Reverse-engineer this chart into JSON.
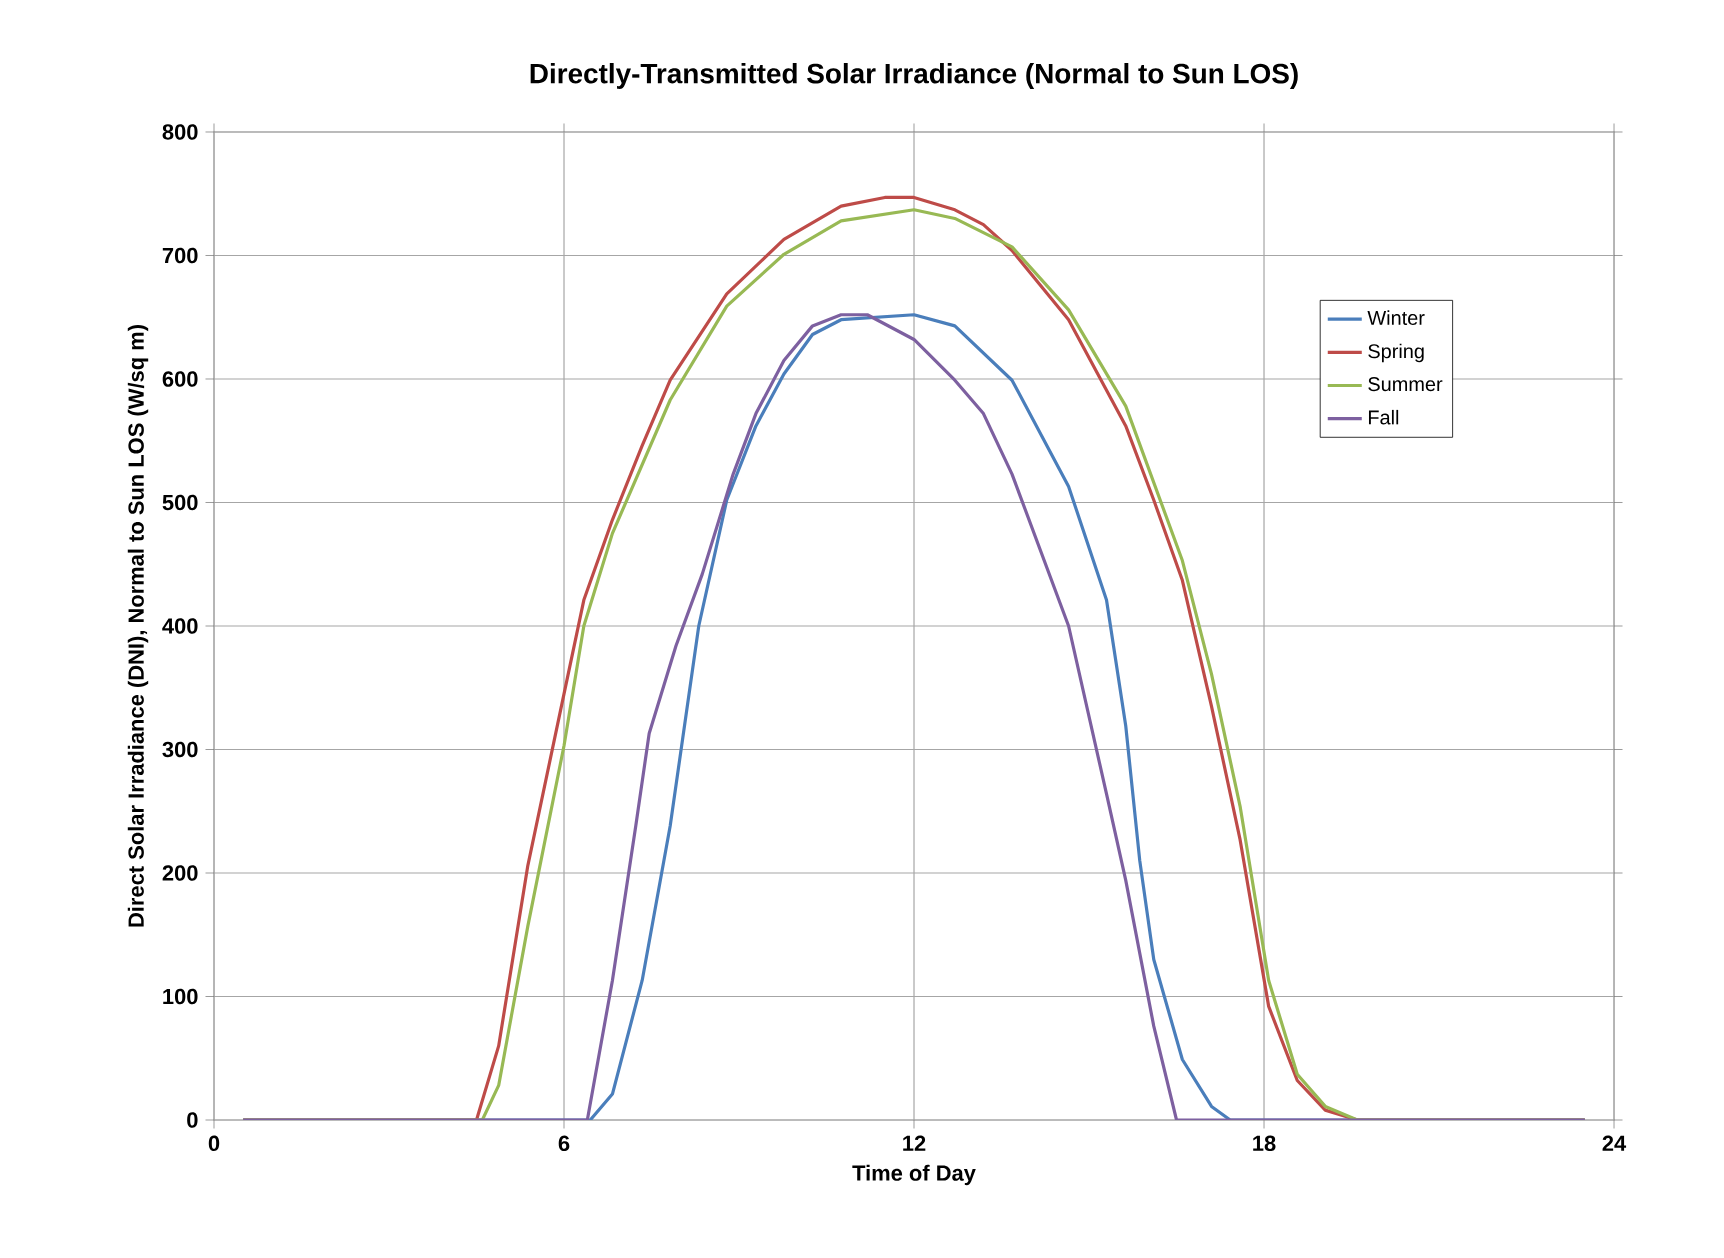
{
  "chart_data": {
    "type": "line",
    "title": "Directly-Transmitted Solar Irradiance (Normal to Sun LOS)",
    "xlabel": "Time of Day",
    "ylabel": "Direct Solar Irradiance (DNI), Normal to Sun LOS (W/sq m)",
    "xlim": [
      0,
      24
    ],
    "xticks": [
      0,
      6,
      12,
      18,
      24
    ],
    "ylim": [
      0,
      800
    ],
    "yticks": [
      0,
      100,
      200,
      300,
      400,
      500,
      600,
      700,
      800
    ],
    "grid": true,
    "legend": "top right",
    "line_style": "solid",
    "marker": "none",
    "series": [
      {
        "name": "Winter",
        "color": "#4a7ebb",
        "x": [
          0.5,
          6.45,
          6.83,
          7.34,
          7.82,
          8.31,
          8.79,
          9.29,
          9.77,
          10.26,
          10.75,
          12.0,
          12.7,
          13.68,
          14.65,
          15.3,
          15.63,
          15.87,
          16.11,
          16.6,
          17.1,
          17.42,
          23.5
        ],
        "values": [
          0,
          0,
          21,
          113,
          238,
          400,
          502,
          562,
          604,
          636,
          648,
          652,
          643,
          599,
          513,
          421,
          319,
          210,
          130,
          49,
          11,
          0,
          0
        ]
      },
      {
        "name": "Spring",
        "color": "#be4b48",
        "x": [
          0.5,
          4.5,
          4.88,
          5.38,
          6.0,
          6.34,
          6.83,
          7.34,
          7.82,
          8.79,
          9.77,
          10.75,
          11.5,
          12.0,
          12.7,
          13.19,
          13.68,
          14.65,
          15.63,
          16.11,
          16.6,
          17.1,
          17.59,
          18.08,
          18.57,
          19.05,
          19.6,
          23.5
        ],
        "values": [
          0,
          0,
          60,
          206,
          345,
          421,
          486,
          546,
          599,
          669,
          713,
          740,
          747,
          747,
          737,
          725,
          704,
          648,
          562,
          502,
          437,
          335,
          227,
          92,
          32,
          8,
          0,
          0
        ]
      },
      {
        "name": "Summer",
        "color": "#98b954",
        "x": [
          0.5,
          4.6,
          4.88,
          5.38,
          6.0,
          6.34,
          6.83,
          7.82,
          8.79,
          9.77,
          10.75,
          12.0,
          12.7,
          13.68,
          14.65,
          15.63,
          16.6,
          17.1,
          17.59,
          18.08,
          18.57,
          19.05,
          19.6,
          23.5
        ],
        "values": [
          0,
          0,
          28,
          157,
          303,
          400,
          475,
          583,
          659,
          701,
          728,
          737,
          730,
          707,
          656,
          578,
          453,
          361,
          254,
          113,
          37,
          11,
          0,
          0
        ]
      },
      {
        "name": "Fall",
        "color": "#7d60a0",
        "x": [
          0.5,
          6.4,
          6.83,
          7.23,
          7.46,
          7.92,
          8.37,
          8.9,
          9.29,
          9.77,
          10.26,
          10.75,
          11.2,
          12.0,
          12.7,
          13.19,
          13.68,
          14.65,
          15.3,
          15.63,
          16.11,
          16.5,
          23.5
        ],
        "values": [
          0,
          0,
          113,
          238,
          313,
          384,
          442,
          523,
          572,
          615,
          643,
          652,
          652,
          632,
          599,
          572,
          523,
          400,
          264,
          194,
          76,
          0,
          0
        ]
      }
    ]
  }
}
